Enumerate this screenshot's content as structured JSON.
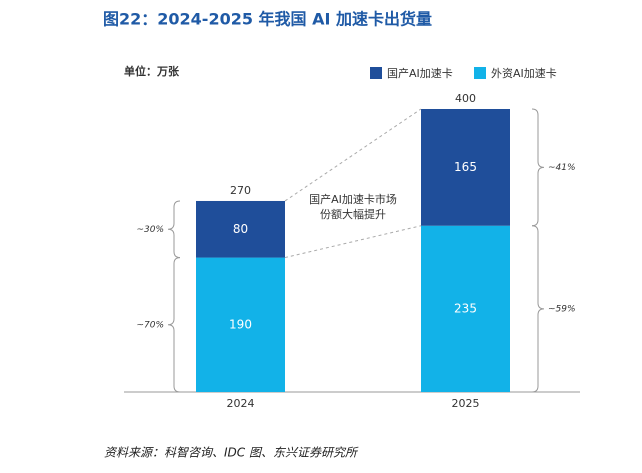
{
  "chart_data": {
    "type": "stacked_bar",
    "title": "图22：2024-2025 年我国 AI 加速卡出货量",
    "unit_label": "单位：万张",
    "categories": [
      "2024",
      "2025"
    ],
    "series": [
      {
        "name": "国产AI加速卡",
        "color": "#1f4e9a",
        "values": [
          80,
          165
        ],
        "share_labels": [
          "~30%",
          "~41%"
        ]
      },
      {
        "name": "外资AI加速卡",
        "color": "#12b2e8",
        "values": [
          190,
          235
        ],
        "share_labels": [
          "~70%",
          "~59%"
        ]
      }
    ],
    "totals": [
      270,
      400
    ],
    "annotation": [
      "国产AI加速卡市场",
      "份额大幅提升"
    ],
    "source": "资料来源：科智咨询、IDC 图、东兴证券研究所"
  }
}
